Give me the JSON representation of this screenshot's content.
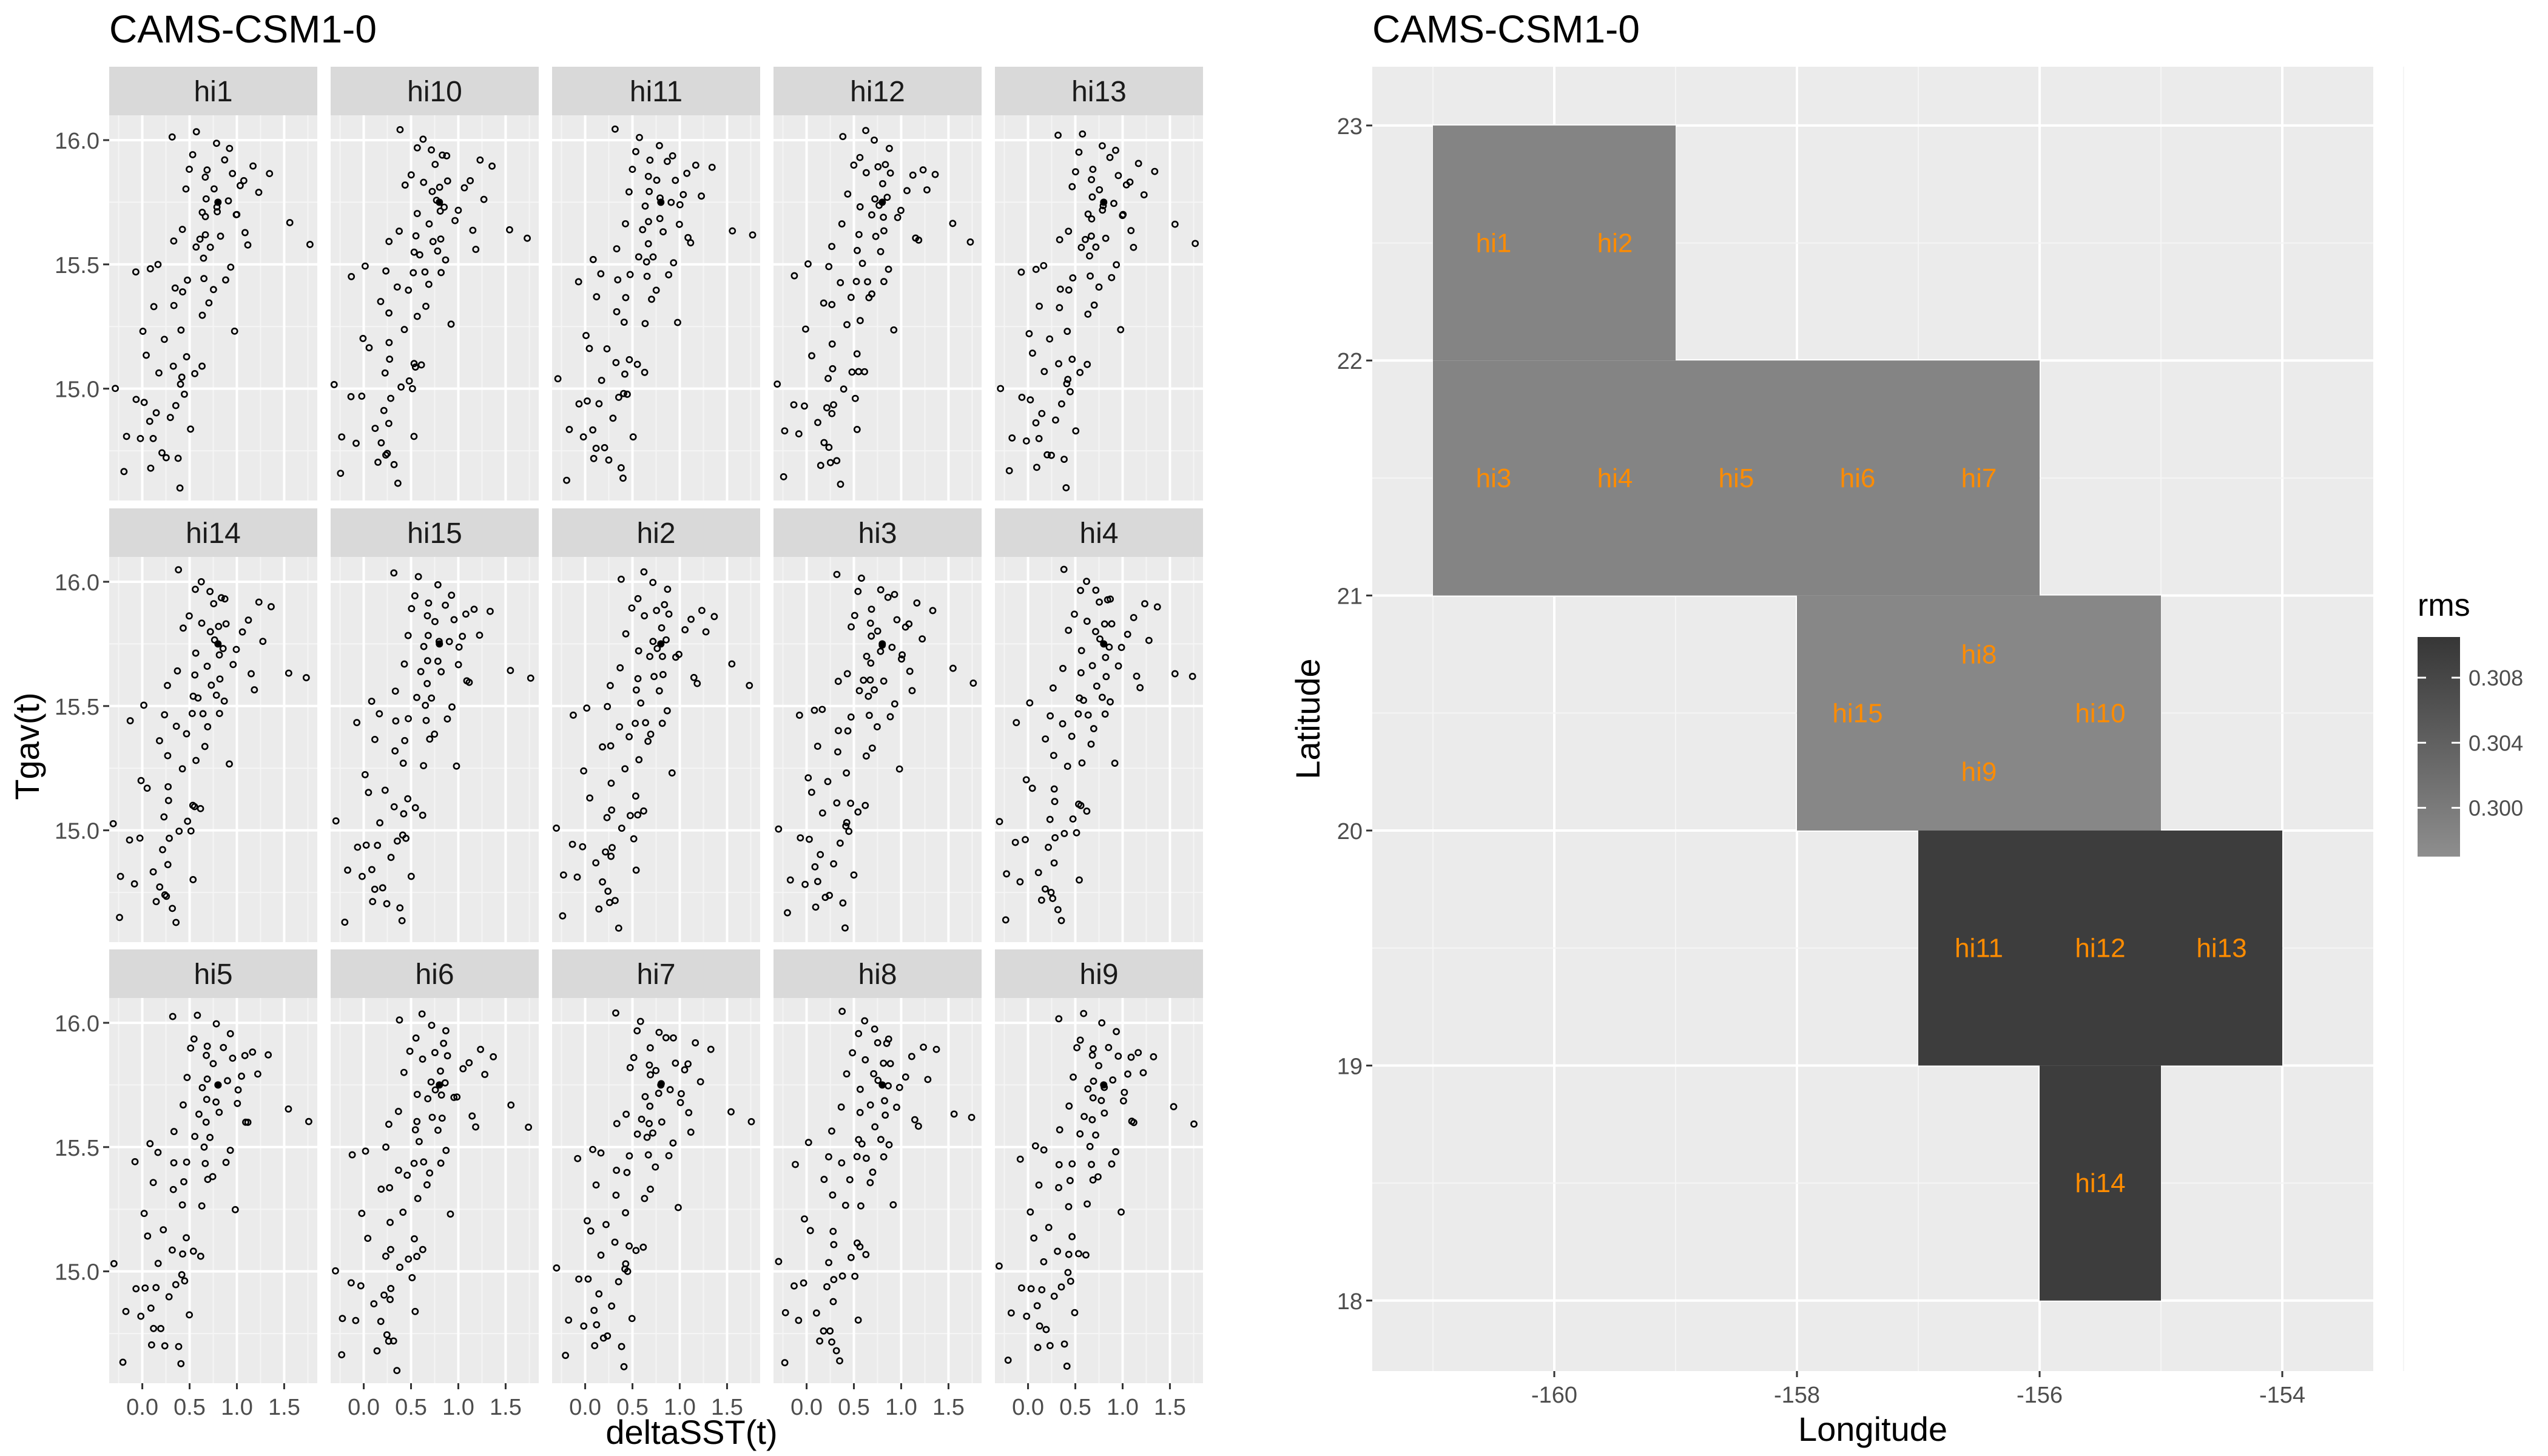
{
  "colors": {
    "panel_bg": "#ebebeb",
    "grid_major": "#ffffff",
    "grid_minor": "#f5f5f5",
    "strip_bg": "#d9d9d9",
    "points": "#000000",
    "tile_label": "#ff8c00",
    "fill_low": "#888888",
    "fill_high": "#3c3c3c"
  },
  "chart_data": [
    {
      "type": "scatter",
      "title": "CAMS-CSM1-0",
      "xlabel": "deltaSST(t)",
      "ylabel": "Tgav(t)",
      "xlim": [
        -0.35,
        1.85
      ],
      "ylim": [
        14.55,
        16.1
      ],
      "xticks": [
        0.0,
        0.5,
        1.0,
        1.5
      ],
      "xtick_labels": [
        "0.0",
        "0.5",
        "1.0",
        "1.5"
      ],
      "yticks": [
        15.0,
        15.5,
        16.0
      ],
      "ytick_labels": [
        "15.0",
        "15.5",
        "16.0"
      ],
      "grid": true,
      "facet_layout": "5 columns x 3 rows",
      "facets": [
        "hi1",
        "hi10",
        "hi11",
        "hi12",
        "hi13",
        "hi14",
        "hi15",
        "hi2",
        "hi3",
        "hi4",
        "hi5",
        "hi6",
        "hi7",
        "hi8",
        "hi9"
      ],
      "points": [
        [
          -0.3,
          15.02
        ],
        [
          -0.22,
          14.65
        ],
        [
          -0.2,
          14.82
        ],
        [
          -0.1,
          14.95
        ],
        [
          -0.05,
          14.8
        ],
        [
          0.0,
          14.95
        ],
        [
          0.0,
          15.22
        ],
        [
          0.05,
          15.15
        ],
        [
          0.1,
          14.85
        ],
        [
          0.12,
          14.7
        ],
        [
          0.15,
          14.78
        ],
        [
          0.18,
          14.92
        ],
        [
          0.2,
          15.05
        ],
        [
          0.22,
          14.75
        ],
        [
          0.25,
          14.72
        ],
        [
          0.28,
          14.88
        ],
        [
          0.3,
          15.1
        ],
        [
          0.3,
          15.32
        ],
        [
          0.32,
          14.95
        ],
        [
          0.35,
          14.7
        ],
        [
          0.38,
          14.62
        ],
        [
          0.4,
          15.0
        ],
        [
          0.42,
          15.25
        ],
        [
          0.45,
          15.38
        ],
        [
          0.45,
          15.05
        ],
        [
          0.48,
          14.98
        ],
        [
          0.5,
          15.12
        ],
        [
          0.5,
          15.45
        ],
        [
          0.52,
          14.82
        ],
        [
          0.55,
          15.08
        ],
        [
          0.55,
          15.55
        ],
        [
          0.58,
          15.62
        ],
        [
          0.6,
          15.28
        ],
        [
          0.6,
          15.72
        ],
        [
          0.62,
          15.52
        ],
        [
          0.65,
          15.85
        ],
        [
          0.65,
          15.45
        ],
        [
          0.68,
          15.68
        ],
        [
          0.7,
          15.78
        ],
        [
          0.7,
          15.6
        ],
        [
          0.72,
          15.9
        ],
        [
          0.75,
          15.55
        ],
        [
          0.78,
          15.82
        ],
        [
          0.8,
          15.7
        ],
        [
          0.82,
          15.62
        ],
        [
          0.85,
          15.92
        ],
        [
          0.88,
          15.75
        ],
        [
          0.9,
          15.5
        ],
        [
          0.92,
          15.85
        ],
        [
          0.95,
          15.25
        ],
        [
          0.98,
          15.68
        ],
        [
          1.0,
          15.72
        ],
        [
          1.05,
          15.8
        ],
        [
          1.1,
          15.85
        ],
        [
          1.12,
          15.62
        ],
        [
          1.15,
          15.58
        ],
        [
          1.2,
          15.9
        ],
        [
          1.25,
          15.78
        ],
        [
          1.35,
          15.88
        ],
        [
          1.55,
          15.65
        ],
        [
          1.75,
          15.6
        ],
        [
          -0.1,
          15.45
        ],
        [
          0.05,
          15.5
        ],
        [
          0.3,
          15.58
        ],
        [
          0.4,
          15.65
        ],
        [
          0.45,
          15.8
        ],
        [
          0.5,
          15.88
        ],
        [
          0.55,
          15.95
        ],
        [
          0.6,
          16.02
        ],
        [
          0.35,
          16.03
        ],
        [
          0.2,
          15.48
        ],
        [
          0.15,
          15.35
        ],
        [
          0.25,
          15.18
        ],
        [
          0.35,
          15.42
        ],
        [
          0.62,
          15.08
        ],
        [
          0.68,
          15.35
        ],
        [
          0.72,
          15.4
        ],
        [
          0.75,
          15.98
        ],
        [
          0.85,
          15.45
        ],
        [
          0.9,
          15.95
        ],
        [
          0.78,
          15.75
        ]
      ]
    },
    {
      "type": "heatmap",
      "title": "CAMS-CSM1-0",
      "xlabel": "Longitude",
      "ylabel": "Latitude",
      "xlim": [
        -161.5,
        -153.25
      ],
      "ylim": [
        17.7,
        23.25
      ],
      "xticks": [
        -160,
        -158,
        -156,
        -154
      ],
      "xtick_labels": [
        "-160",
        "-158",
        "-156",
        "-154"
      ],
      "yticks": [
        18,
        19,
        20,
        21,
        22,
        23
      ],
      "ytick_labels": [
        "18",
        "19",
        "20",
        "21",
        "22",
        "23"
      ],
      "legend": {
        "title": "rms",
        "position": "right",
        "range": [
          0.297,
          0.3105
        ],
        "ticks": [
          0.3,
          0.304,
          0.308
        ],
        "tick_labels": [
          "0.300",
          "0.304",
          "0.308"
        ]
      },
      "tiles": [
        {
          "name": "hi1",
          "lon": -160.5,
          "lat": 22.5,
          "rms": 0.2985
        },
        {
          "name": "hi2",
          "lon": -159.5,
          "lat": 22.5,
          "rms": 0.2985
        },
        {
          "name": "hi3",
          "lon": -160.5,
          "lat": 21.5,
          "rms": 0.2985
        },
        {
          "name": "hi4",
          "lon": -159.5,
          "lat": 21.5,
          "rms": 0.2985
        },
        {
          "name": "hi5",
          "lon": -158.5,
          "lat": 21.5,
          "rms": 0.2985
        },
        {
          "name": "hi6",
          "lon": -157.5,
          "lat": 21.5,
          "rms": 0.2985
        },
        {
          "name": "hi7",
          "lon": -156.5,
          "lat": 21.5,
          "rms": 0.2985
        },
        {
          "name": "hi8",
          "lon": -156.5,
          "lat": 20.75,
          "rms": null
        },
        {
          "name": "hi15",
          "lon": -157.5,
          "lat": 20.5,
          "rms": 0.298
        },
        {
          "name": "hi10",
          "lon": -155.5,
          "lat": 20.5,
          "rms": 0.298
        },
        {
          "name": "hi9",
          "lon": -156.5,
          "lat": 20.25,
          "rms": null
        },
        {
          "name": "hi11",
          "lon": -156.5,
          "lat": 19.5,
          "rms": 0.3095
        },
        {
          "name": "hi12",
          "lon": -155.5,
          "lat": 19.5,
          "rms": 0.3095
        },
        {
          "name": "hi13",
          "lon": -154.5,
          "lat": 19.5,
          "rms": 0.3095
        },
        {
          "name": "hi14",
          "lon": -155.5,
          "lat": 18.5,
          "rms": 0.3095
        }
      ],
      "bands": [
        {
          "lon_min": -161,
          "lon_max": -159,
          "lat_min": 22,
          "lat_max": 23,
          "rms": 0.2985
        },
        {
          "lon_min": -161,
          "lon_max": -156,
          "lat_min": 21,
          "lat_max": 22,
          "rms": 0.2985
        },
        {
          "lon_min": -158,
          "lon_max": -155,
          "lat_min": 20,
          "lat_max": 21,
          "rms": 0.298
        },
        {
          "lon_min": -157,
          "lon_max": -154,
          "lat_min": 19,
          "lat_max": 20,
          "rms": 0.3095
        },
        {
          "lon_min": -156,
          "lon_max": -155,
          "lat_min": 18,
          "lat_max": 19,
          "rms": 0.3095
        }
      ]
    }
  ]
}
